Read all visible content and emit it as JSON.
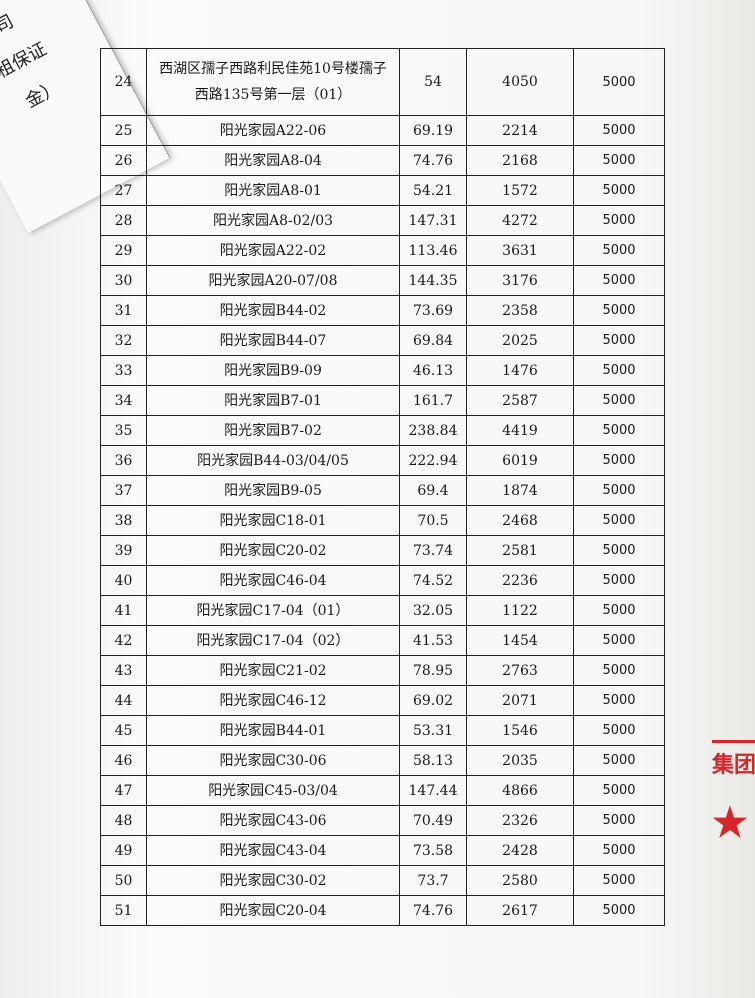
{
  "table": {
    "rows": [
      [
        [
          "24"
        ],
        [
          "西湖区孺子西路利民佳苑10号楼孺子",
          "西路135号第一层（01）"
        ],
        "54",
        "4050",
        "5000"
      ],
      [
        [
          "25"
        ],
        [
          "阳光家园A22-06"
        ],
        "69.19",
        "2214",
        "5000"
      ],
      [
        [
          "26"
        ],
        [
          "阳光家园A8-04"
        ],
        "74.76",
        "2168",
        "5000"
      ],
      [
        [
          "27"
        ],
        [
          "阳光家园A8-01"
        ],
        "54.21",
        "1572",
        "5000"
      ],
      [
        [
          "28"
        ],
        [
          "阳光家园A8-02/03"
        ],
        "147.31",
        "4272",
        "5000"
      ],
      [
        [
          "29"
        ],
        [
          "阳光家园A22-02"
        ],
        "113.46",
        "3631",
        "5000"
      ],
      [
        [
          "30"
        ],
        [
          "阳光家园A20-07/08"
        ],
        "144.35",
        "3176",
        "5000"
      ],
      [
        [
          "31"
        ],
        [
          "阳光家园B44-02"
        ],
        "73.69",
        "2358",
        "5000"
      ],
      [
        [
          "32"
        ],
        [
          "阳光家园B44-07"
        ],
        "69.84",
        "2025",
        "5000"
      ],
      [
        [
          "33"
        ],
        [
          "阳光家园B9-09"
        ],
        "46.13",
        "1476",
        "5000"
      ],
      [
        [
          "34"
        ],
        [
          "阳光家园B7-01"
        ],
        "161.7",
        "2587",
        "5000"
      ],
      [
        [
          "35"
        ],
        [
          "阳光家园B7-02"
        ],
        "238.84",
        "4419",
        "5000"
      ],
      [
        [
          "36"
        ],
        [
          "阳光家园B44-03/04/05"
        ],
        "222.94",
        "6019",
        "5000"
      ],
      [
        [
          "37"
        ],
        [
          "阳光家园B9-05"
        ],
        "69.4",
        "1874",
        "5000"
      ],
      [
        [
          "38"
        ],
        [
          "阳光家园C18-01"
        ],
        "70.5",
        "2468",
        "5000"
      ],
      [
        [
          "39"
        ],
        [
          "阳光家园C20-02"
        ],
        "73.74",
        "2581",
        "5000"
      ],
      [
        [
          "40"
        ],
        [
          "阳光家园C46-04"
        ],
        "74.52",
        "2236",
        "5000"
      ],
      [
        [
          "41"
        ],
        [
          "阳光家园C17-04（01）"
        ],
        "32.05",
        "1122",
        "5000"
      ],
      [
        [
          "42"
        ],
        [
          "阳光家园C17-04（02）"
        ],
        "41.53",
        "1454",
        "5000"
      ],
      [
        [
          "43"
        ],
        [
          "阳光家园C21-02"
        ],
        "78.95",
        "2763",
        "5000"
      ],
      [
        [
          "44"
        ],
        [
          "阳光家园C46-12"
        ],
        "69.02",
        "2071",
        "5000"
      ],
      [
        [
          "45"
        ],
        [
          "阳光家园B44-01"
        ],
        "53.31",
        "1546",
        "5000"
      ],
      [
        [
          "46"
        ],
        [
          "阳光家园C30-06"
        ],
        "58.13",
        "2035",
        "5000"
      ],
      [
        [
          "47"
        ],
        [
          "阳光家园C45-03/04"
        ],
        "147.44",
        "4866",
        "5000"
      ],
      [
        [
          "48"
        ],
        [
          "阳光家园C43-06"
        ],
        "70.49",
        "2326",
        "5000"
      ],
      [
        [
          "49"
        ],
        [
          "阳光家园C43-04"
        ],
        "73.58",
        "2428",
        "5000"
      ],
      [
        [
          "50"
        ],
        [
          "阳光家园C30-02"
        ],
        "73.7",
        "2580",
        "5000"
      ],
      [
        [
          "51"
        ],
        [
          "阳光家园C20-04"
        ],
        "74.76",
        "2617",
        "5000"
      ]
    ]
  },
  "fragments": {
    "corner": [
      "公司",
      "免租保证",
      "金）"
    ],
    "stamp": "集团"
  }
}
